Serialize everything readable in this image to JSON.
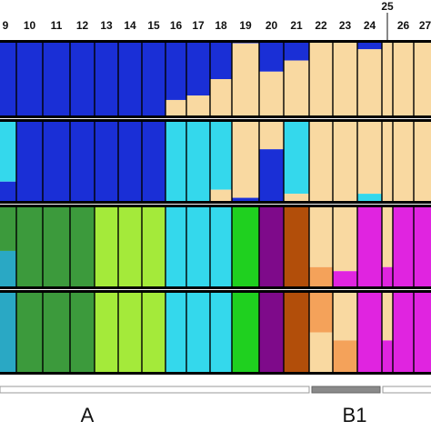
{
  "chart_data": {
    "type": "bar",
    "subtype": "stacked-ancestry-proportions",
    "title": "",
    "xlabel": "",
    "ylabel": "",
    "ylim": [
      0,
      1
    ],
    "grid": false,
    "legend": "none",
    "population_labels": [
      "9",
      "10",
      "11",
      "12",
      "13",
      "14",
      "15",
      "16",
      "17",
      "18",
      "19",
      "20",
      "21",
      "22",
      "23",
      "24",
      "25",
      "26",
      "27"
    ],
    "raised_labels": [
      "25"
    ],
    "groups": [
      {
        "label": "A",
        "from": "9",
        "to": "21"
      },
      {
        "label": "B1",
        "from": "22",
        "to": "24"
      }
    ],
    "colors": {
      "blue": "#1a2fd6",
      "cream": "#f9d9a1",
      "cyan": "#34d8ec",
      "dark_green": "#3c9a3c",
      "light_green": "#a4ea3a",
      "bright_green": "#1fd01f",
      "purple": "#7e0a8a",
      "brown": "#b24e0a",
      "magenta": "#e024e0",
      "orange": "#f4a25a",
      "teal": "#2aa8c4",
      "gray": "#888888",
      "red": "#e01818"
    },
    "panels": [
      {
        "name": "panel-1",
        "pops": [
          {
            "pop": "9",
            "segments": [
              {
                "color": "blue",
                "value": 1.0
              }
            ]
          },
          {
            "pop": "10",
            "segments": [
              {
                "color": "blue",
                "value": 1.0
              }
            ]
          },
          {
            "pop": "11",
            "segments": [
              {
                "color": "blue",
                "value": 1.0
              }
            ]
          },
          {
            "pop": "12",
            "segments": [
              {
                "color": "blue",
                "value": 1.0
              }
            ]
          },
          {
            "pop": "13",
            "segments": [
              {
                "color": "blue",
                "value": 1.0
              }
            ]
          },
          {
            "pop": "14",
            "segments": [
              {
                "color": "blue",
                "value": 1.0
              }
            ]
          },
          {
            "pop": "15",
            "segments": [
              {
                "color": "blue",
                "value": 1.0
              }
            ]
          },
          {
            "pop": "16",
            "segments": [
              {
                "color": "blue",
                "value": 0.78
              },
              {
                "color": "cream",
                "value": 0.22
              }
            ]
          },
          {
            "pop": "17",
            "segments": [
              {
                "color": "blue",
                "value": 0.72
              },
              {
                "color": "cream",
                "value": 0.28
              }
            ]
          },
          {
            "pop": "18",
            "segments": [
              {
                "color": "blue",
                "value": 0.5
              },
              {
                "color": "cream",
                "value": 0.5
              }
            ]
          },
          {
            "pop": "19",
            "segments": [
              {
                "color": "blue",
                "value": 0.02
              },
              {
                "color": "cream",
                "value": 0.98
              }
            ]
          },
          {
            "pop": "20",
            "segments": [
              {
                "color": "blue",
                "value": 0.4
              },
              {
                "color": "cream",
                "value": 0.6
              }
            ]
          },
          {
            "pop": "21",
            "segments": [
              {
                "color": "blue",
                "value": 0.25
              },
              {
                "color": "cream",
                "value": 0.75
              }
            ]
          },
          {
            "pop": "22",
            "segments": [
              {
                "color": "cream",
                "value": 1.0
              }
            ]
          },
          {
            "pop": "23",
            "segments": [
              {
                "color": "cream",
                "value": 1.0
              }
            ]
          },
          {
            "pop": "24",
            "segments": [
              {
                "color": "blue",
                "value": 0.1
              },
              {
                "color": "cream",
                "value": 0.9
              }
            ]
          },
          {
            "pop": "25",
            "segments": [
              {
                "color": "cream",
                "value": 1.0
              }
            ]
          },
          {
            "pop": "26",
            "segments": [
              {
                "color": "cream",
                "value": 1.0
              }
            ]
          },
          {
            "pop": "27",
            "segments": [
              {
                "color": "cream",
                "value": 1.0
              }
            ]
          }
        ]
      },
      {
        "name": "panel-2",
        "pops": [
          {
            "pop": "9",
            "segments": [
              {
                "color": "cyan",
                "value": 0.75
              },
              {
                "color": "blue",
                "value": 0.25
              }
            ]
          },
          {
            "pop": "10",
            "segments": [
              {
                "color": "blue",
                "value": 1.0
              }
            ]
          },
          {
            "pop": "11",
            "segments": [
              {
                "color": "blue",
                "value": 1.0
              }
            ]
          },
          {
            "pop": "12",
            "segments": [
              {
                "color": "blue",
                "value": 1.0
              }
            ]
          },
          {
            "pop": "13",
            "segments": [
              {
                "color": "blue",
                "value": 1.0
              }
            ]
          },
          {
            "pop": "14",
            "segments": [
              {
                "color": "blue",
                "value": 1.0
              }
            ]
          },
          {
            "pop": "15",
            "segments": [
              {
                "color": "blue",
                "value": 1.0
              }
            ]
          },
          {
            "pop": "16",
            "segments": [
              {
                "color": "cyan",
                "value": 1.0
              }
            ]
          },
          {
            "pop": "17",
            "segments": [
              {
                "color": "cyan",
                "value": 1.0
              }
            ]
          },
          {
            "pop": "18",
            "segments": [
              {
                "color": "cyan",
                "value": 0.85
              },
              {
                "color": "cream",
                "value": 0.15
              }
            ]
          },
          {
            "pop": "19",
            "segments": [
              {
                "color": "cream",
                "value": 0.95
              },
              {
                "color": "blue",
                "value": 0.05
              }
            ]
          },
          {
            "pop": "20",
            "segments": [
              {
                "color": "cream",
                "value": 0.35
              },
              {
                "color": "blue",
                "value": 0.65
              }
            ]
          },
          {
            "pop": "21",
            "segments": [
              {
                "color": "cyan",
                "value": 0.9
              },
              {
                "color": "cream",
                "value": 0.1
              }
            ]
          },
          {
            "pop": "22",
            "segments": [
              {
                "color": "cream",
                "value": 1.0
              }
            ]
          },
          {
            "pop": "23",
            "segments": [
              {
                "color": "cream",
                "value": 1.0
              }
            ]
          },
          {
            "pop": "24",
            "segments": [
              {
                "color": "cream",
                "value": 0.9
              },
              {
                "color": "cyan",
                "value": 0.1
              }
            ]
          },
          {
            "pop": "25",
            "segments": [
              {
                "color": "cream",
                "value": 1.0
              }
            ]
          },
          {
            "pop": "26",
            "segments": [
              {
                "color": "cream",
                "value": 1.0
              }
            ]
          },
          {
            "pop": "27",
            "segments": [
              {
                "color": "cream",
                "value": 1.0
              }
            ]
          }
        ]
      },
      {
        "name": "panel-3",
        "pops": [
          {
            "pop": "9",
            "segments": [
              {
                "color": "dark_green",
                "value": 0.55
              },
              {
                "color": "teal",
                "value": 0.45
              }
            ]
          },
          {
            "pop": "10",
            "segments": [
              {
                "color": "dark_green",
                "value": 1.0
              }
            ]
          },
          {
            "pop": "11",
            "segments": [
              {
                "color": "dark_green",
                "value": 1.0
              }
            ]
          },
          {
            "pop": "12",
            "segments": [
              {
                "color": "dark_green",
                "value": 1.0
              }
            ]
          },
          {
            "pop": "13",
            "segments": [
              {
                "color": "light_green",
                "value": 1.0
              }
            ]
          },
          {
            "pop": "14",
            "segments": [
              {
                "color": "light_green",
                "value": 1.0
              }
            ]
          },
          {
            "pop": "15",
            "segments": [
              {
                "color": "light_green",
                "value": 1.0
              }
            ]
          },
          {
            "pop": "16",
            "segments": [
              {
                "color": "cyan",
                "value": 1.0
              }
            ]
          },
          {
            "pop": "17",
            "segments": [
              {
                "color": "cyan",
                "value": 1.0
              }
            ]
          },
          {
            "pop": "18",
            "segments": [
              {
                "color": "cyan",
                "value": 1.0
              }
            ]
          },
          {
            "pop": "19",
            "segments": [
              {
                "color": "bright_green",
                "value": 1.0
              }
            ]
          },
          {
            "pop": "20",
            "segments": [
              {
                "color": "purple",
                "value": 1.0
              }
            ]
          },
          {
            "pop": "21",
            "segments": [
              {
                "color": "brown",
                "value": 1.0
              }
            ]
          },
          {
            "pop": "22",
            "segments": [
              {
                "color": "cream",
                "value": 0.75
              },
              {
                "color": "orange",
                "value": 0.25
              }
            ]
          },
          {
            "pop": "23",
            "segments": [
              {
                "color": "cream",
                "value": 0.8
              },
              {
                "color": "magenta",
                "value": 0.2
              }
            ]
          },
          {
            "pop": "24",
            "segments": [
              {
                "color": "magenta",
                "value": 1.0
              }
            ]
          },
          {
            "pop": "25",
            "segments": [
              {
                "color": "cream",
                "value": 0.75
              },
              {
                "color": "magenta",
                "value": 0.25
              }
            ]
          },
          {
            "pop": "26",
            "segments": [
              {
                "color": "magenta",
                "value": 1.0
              }
            ]
          },
          {
            "pop": "27",
            "segments": [
              {
                "color": "magenta",
                "value": 1.0
              }
            ]
          }
        ]
      },
      {
        "name": "panel-4",
        "pops": [
          {
            "pop": "9",
            "segments": [
              {
                "color": "teal",
                "value": 1.0
              }
            ]
          },
          {
            "pop": "10",
            "segments": [
              {
                "color": "dark_green",
                "value": 1.0
              }
            ]
          },
          {
            "pop": "11",
            "segments": [
              {
                "color": "dark_green",
                "value": 1.0
              }
            ]
          },
          {
            "pop": "12",
            "segments": [
              {
                "color": "dark_green",
                "value": 1.0
              }
            ]
          },
          {
            "pop": "13",
            "segments": [
              {
                "color": "light_green",
                "value": 1.0
              }
            ]
          },
          {
            "pop": "14",
            "segments": [
              {
                "color": "light_green",
                "value": 1.0
              }
            ]
          },
          {
            "pop": "15",
            "segments": [
              {
                "color": "light_green",
                "value": 1.0
              }
            ]
          },
          {
            "pop": "16",
            "segments": [
              {
                "color": "cyan",
                "value": 1.0
              }
            ]
          },
          {
            "pop": "17",
            "segments": [
              {
                "color": "cyan",
                "value": 1.0
              }
            ]
          },
          {
            "pop": "18",
            "segments": [
              {
                "color": "cyan",
                "value": 1.0
              }
            ]
          },
          {
            "pop": "19",
            "segments": [
              {
                "color": "bright_green",
                "value": 1.0
              }
            ]
          },
          {
            "pop": "20",
            "segments": [
              {
                "color": "purple",
                "value": 1.0
              }
            ]
          },
          {
            "pop": "21",
            "segments": [
              {
                "color": "brown",
                "value": 1.0
              }
            ]
          },
          {
            "pop": "22",
            "segments": [
              {
                "color": "orange",
                "value": 0.5
              },
              {
                "color": "cream",
                "value": 0.5
              }
            ]
          },
          {
            "pop": "23",
            "segments": [
              {
                "color": "cream",
                "value": 0.6
              },
              {
                "color": "orange",
                "value": 0.4
              }
            ]
          },
          {
            "pop": "24",
            "segments": [
              {
                "color": "magenta",
                "value": 1.0
              }
            ]
          },
          {
            "pop": "25",
            "segments": [
              {
                "color": "cream",
                "value": 0.6
              },
              {
                "color": "magenta",
                "value": 0.4
              }
            ]
          },
          {
            "pop": "26",
            "segments": [
              {
                "color": "magenta",
                "value": 1.0
              }
            ]
          },
          {
            "pop": "27",
            "segments": [
              {
                "color": "magenta",
                "value": 1.0
              }
            ]
          }
        ]
      }
    ]
  }
}
